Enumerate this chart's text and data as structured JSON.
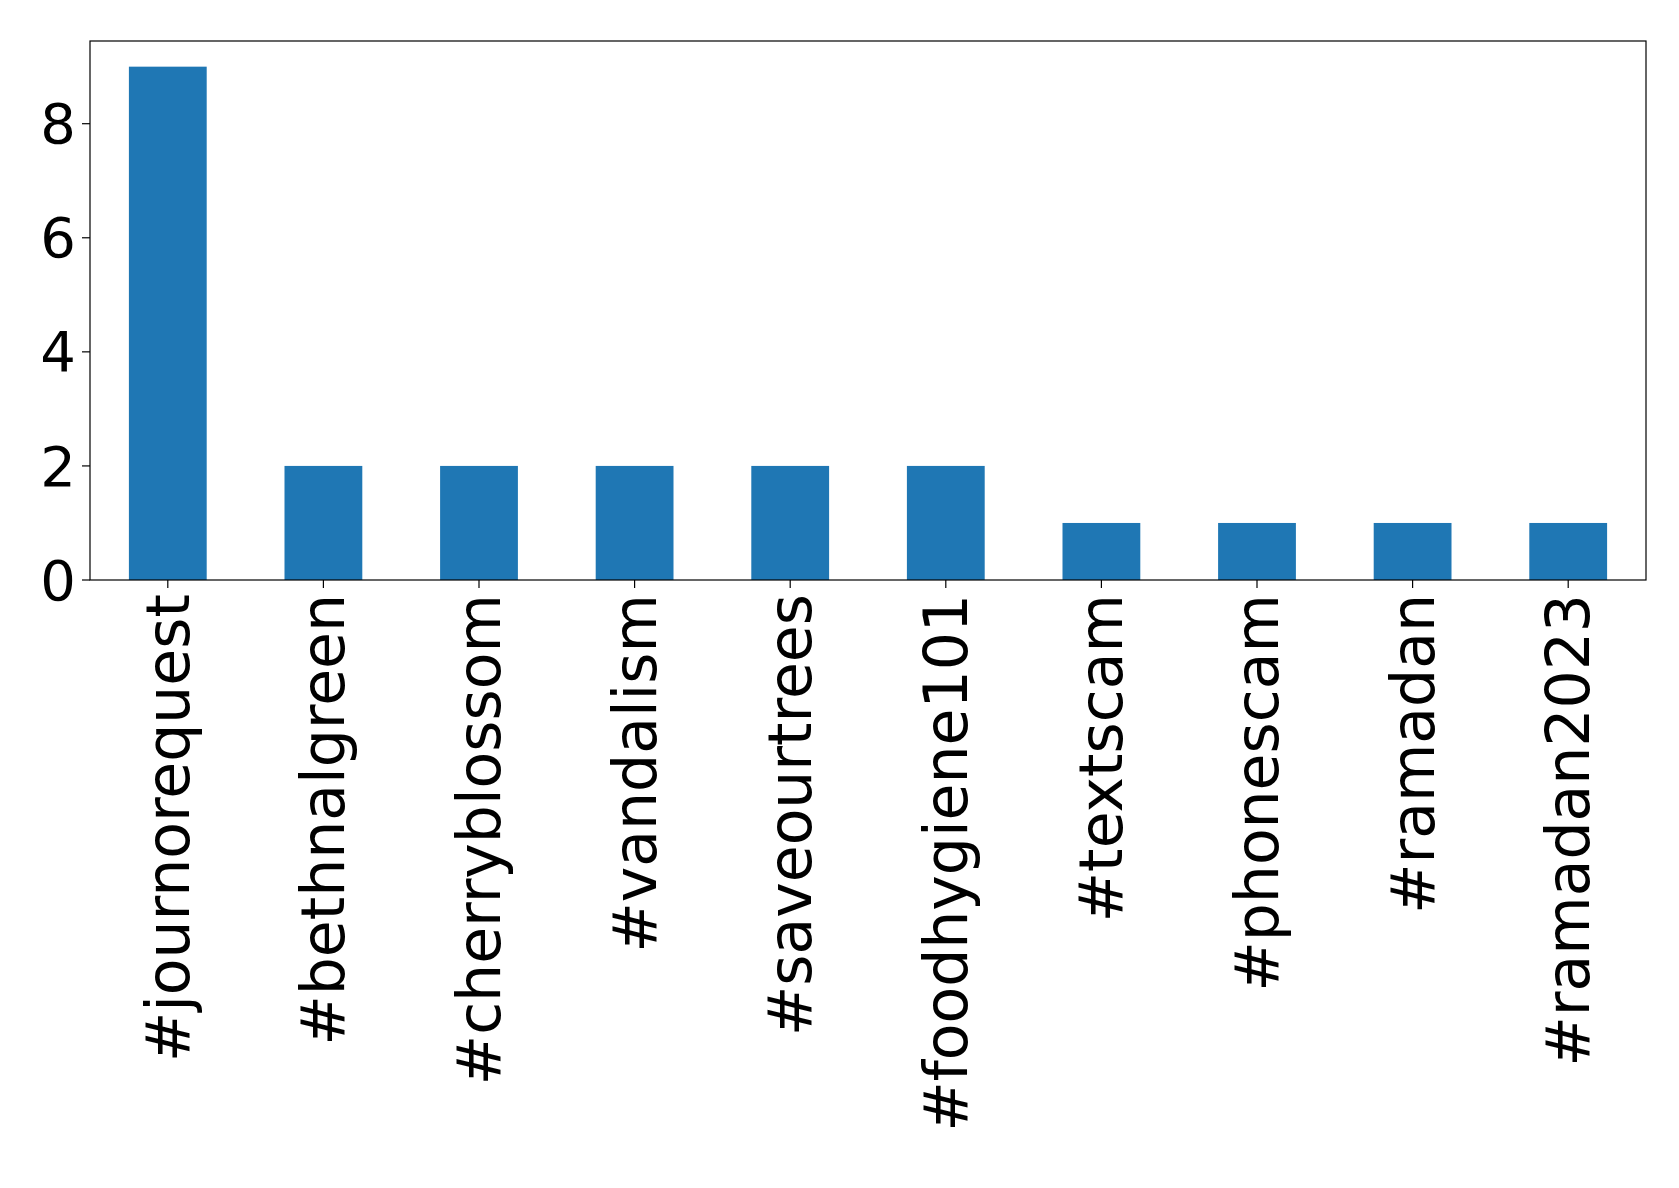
{
  "chart_data": {
    "type": "bar",
    "categories": [
      "#journorequest",
      "#bethnalgreen",
      "#cherryblossom",
      "#vandalism",
      "#saveourtrees",
      "#foodhygiene101",
      "#textscam",
      "#phonescam",
      "#ramadan",
      "#ramadan2023"
    ],
    "values": [
      9,
      2,
      2,
      2,
      2,
      2,
      1,
      1,
      1,
      1
    ],
    "color": "#1f77b4",
    "ylim": [
      0,
      9.45
    ],
    "yticks": [
      0,
      2,
      4,
      6,
      8
    ],
    "grid": false
  }
}
